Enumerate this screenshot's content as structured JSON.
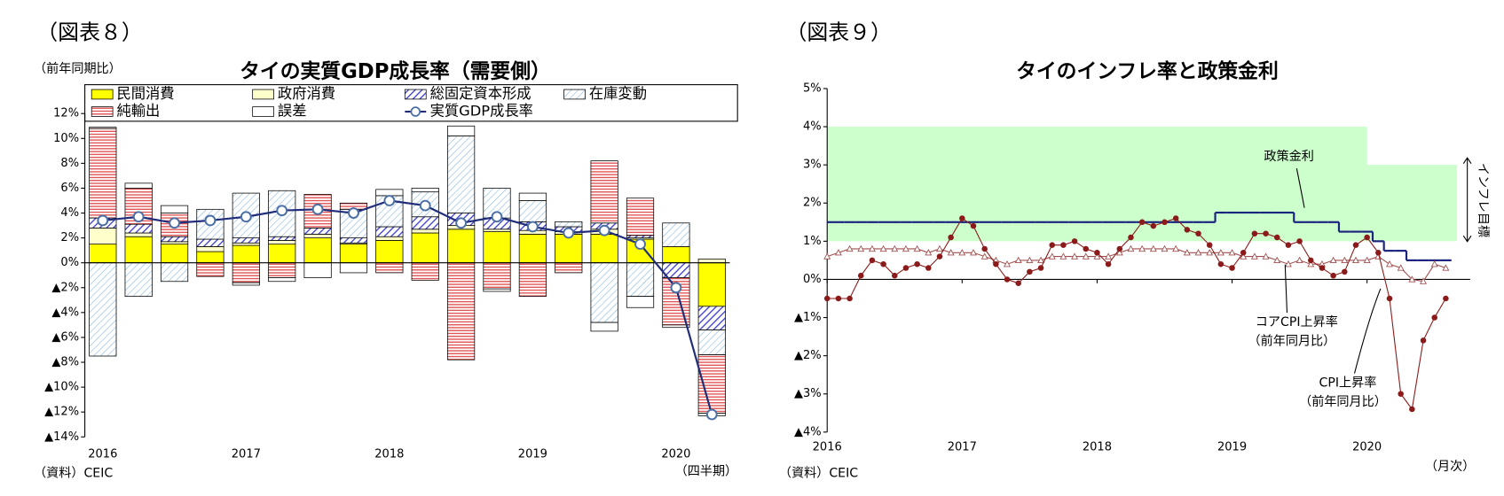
{
  "chart_data": [
    {
      "type": "bar",
      "figure_label": "（図表８）",
      "title": "タイの実質GDP成長率（需要側）",
      "unit_label": "（前年同期比）",
      "source": "（資料）CEIC",
      "x_unit": "（四半期）",
      "legend": "top",
      "grid": false,
      "stacked": true,
      "categories": [
        "2016",
        null,
        null,
        null,
        "2017",
        null,
        null,
        null,
        "2018",
        null,
        null,
        null,
        "2019",
        null,
        null,
        null,
        "2020",
        null
      ],
      "series": [
        {
          "name": "民間消費",
          "color": "#ffff00",
          "hatch": "solid",
          "values": [
            1.5,
            2.1,
            1.5,
            0.9,
            1.4,
            1.5,
            2.0,
            1.5,
            1.8,
            2.4,
            2.7,
            2.5,
            2.3,
            2.3,
            2.3,
            1.9,
            1.3,
            -3.5
          ]
        },
        {
          "name": "政府消費",
          "color": "#ffffcc",
          "hatch": "solid",
          "values": [
            1.3,
            0.3,
            0.2,
            0.4,
            0.2,
            0.3,
            0.3,
            0.1,
            0.3,
            0.3,
            0.3,
            0.2,
            0.3,
            0.2,
            0.4,
            0.1,
            0.0,
            0.3
          ]
        },
        {
          "name": "総固定資本形成",
          "color": "#3b3bcf",
          "hatch": "diagonal-bold",
          "values": [
            0.8,
            0.7,
            0.4,
            0.6,
            0.4,
            0.3,
            0.5,
            0.4,
            0.8,
            1.0,
            1.0,
            0.9,
            0.7,
            0.4,
            0.5,
            0.2,
            -1.2,
            -1.9
          ]
        },
        {
          "name": "在庫変動",
          "color": "#7fb2dd",
          "hatch": "diagonal",
          "values": [
            -7.5,
            -2.7,
            -1.5,
            2.4,
            3.6,
            3.7,
            0.0,
            2.3,
            2.5,
            2.0,
            6.2,
            2.4,
            1.7,
            0.4,
            -4.8,
            -2.7,
            1.9,
            -2.0
          ]
        },
        {
          "name": "純輸出",
          "color": "#e05555",
          "hatch": "horizontal",
          "values": [
            7.2,
            2.9,
            1.9,
            -1.1,
            -1.6,
            -1.2,
            2.7,
            0.5,
            -0.8,
            -1.4,
            -7.8,
            -2.1,
            -2.7,
            -0.8,
            5.0,
            3.0,
            -3.8,
            -4.7
          ]
        },
        {
          "name": "誤差",
          "color": "#ffffff",
          "hatch": "solid",
          "values": [
            0.1,
            0.4,
            0.6,
            0.0,
            -0.2,
            -0.3,
            -1.2,
            -0.8,
            0.5,
            0.3,
            0.8,
            -0.2,
            0.6,
            0.0,
            -0.7,
            -0.9,
            -0.2,
            -0.2
          ]
        },
        {
          "name": "実質GDP成長率",
          "type": "line",
          "color": "#1f2d7a",
          "marker_color": "#4a6fa5",
          "values": [
            3.4,
            3.7,
            3.2,
            3.4,
            3.7,
            4.2,
            4.3,
            4.0,
            5.0,
            4.6,
            3.2,
            3.7,
            2.9,
            2.4,
            2.6,
            1.5,
            -2.0,
            -12.2
          ]
        }
      ],
      "ylim": [
        -14,
        12
      ],
      "yticks": [
        {
          "value": 12,
          "label": "12%"
        },
        {
          "value": 10,
          "label": "10%"
        },
        {
          "value": 8,
          "label": "8%"
        },
        {
          "value": 6,
          "label": "6%"
        },
        {
          "value": 4,
          "label": "4%"
        },
        {
          "value": 2,
          "label": "2%"
        },
        {
          "value": 0,
          "label": "0%"
        },
        {
          "value": -2,
          "label": "▲2%"
        },
        {
          "value": -4,
          "label": "▲4%"
        },
        {
          "value": -6,
          "label": "▲6%"
        },
        {
          "value": -8,
          "label": "▲8%"
        },
        {
          "value": -10,
          "label": "▲10%"
        },
        {
          "value": -12,
          "label": "▲12%"
        },
        {
          "value": -14,
          "label": "▲14%"
        }
      ]
    },
    {
      "type": "line",
      "figure_label": "（図表９）",
      "title": "タイのインフレ率と政策金利",
      "source": "（資料）CEIC",
      "x_unit": "（月次）",
      "grid": false,
      "categories": [
        "2016",
        null,
        null,
        null,
        null,
        null,
        null,
        null,
        null,
        null,
        null,
        null,
        "2017",
        null,
        null,
        null,
        null,
        null,
        null,
        null,
        null,
        null,
        null,
        null,
        "2018",
        null,
        null,
        null,
        null,
        null,
        null,
        null,
        null,
        null,
        null,
        null,
        "2019",
        null,
        null,
        null,
        null,
        null,
        null,
        null,
        null,
        null,
        null,
        null,
        "2020",
        null,
        null,
        null,
        null,
        null,
        null,
        null
      ],
      "target_band": {
        "label": "インフレ目標",
        "color": "#ccffcc",
        "segments": [
          {
            "start": 0,
            "end": 48,
            "low": 1,
            "high": 4
          },
          {
            "start": 48,
            "end": 55,
            "low": 1,
            "high": 3
          }
        ]
      },
      "series": [
        {
          "name": "政策金利",
          "color": "#1a237e",
          "step": true,
          "values": [
            1.5,
            1.5,
            1.5,
            1.5,
            1.5,
            1.5,
            1.5,
            1.5,
            1.5,
            1.5,
            1.5,
            1.5,
            1.5,
            1.5,
            1.5,
            1.5,
            1.5,
            1.5,
            1.5,
            1.5,
            1.5,
            1.5,
            1.5,
            1.5,
            1.5,
            1.5,
            1.5,
            1.5,
            1.5,
            1.5,
            1.5,
            1.5,
            1.5,
            1.5,
            1.5,
            1.75,
            1.75,
            1.75,
            1.75,
            1.75,
            1.75,
            1.75,
            1.5,
            1.5,
            1.5,
            1.5,
            1.25,
            1.25,
            1.25,
            1.0,
            0.75,
            0.75,
            0.5,
            0.5,
            0.5,
            0.5
          ]
        },
        {
          "name": "コアCPI上昇率",
          "name_note": "（前年同月比）",
          "color": "#a05050",
          "marker": "triangle",
          "values": [
            0.6,
            0.7,
            0.8,
            0.8,
            0.8,
            0.8,
            0.8,
            0.8,
            0.8,
            0.7,
            0.8,
            0.7,
            0.7,
            0.7,
            0.6,
            0.5,
            0.4,
            0.5,
            0.5,
            0.5,
            0.6,
            0.6,
            0.6,
            0.6,
            0.6,
            0.6,
            0.7,
            0.8,
            0.8,
            0.8,
            0.8,
            0.8,
            0.7,
            0.7,
            0.7,
            0.7,
            0.7,
            0.6,
            0.6,
            0.6,
            0.5,
            0.4,
            0.5,
            0.4,
            0.4,
            0.5,
            0.5,
            0.5,
            0.5,
            0.6,
            0.4,
            0.3,
            0.0,
            -0.05,
            0.4,
            0.3
          ]
        },
        {
          "name": "CPI上昇率",
          "name_note": "（前年同月比）",
          "color": "#8b1a1a",
          "marker": "circle",
          "values": [
            -0.5,
            -0.5,
            -0.5,
            0.1,
            0.5,
            0.4,
            0.1,
            0.3,
            0.4,
            0.3,
            0.6,
            1.1,
            1.6,
            1.4,
            0.8,
            0.4,
            0.0,
            -0.1,
            0.2,
            0.3,
            0.9,
            0.9,
            1.0,
            0.8,
            0.7,
            0.4,
            0.8,
            1.1,
            1.5,
            1.4,
            1.5,
            1.6,
            1.3,
            1.2,
            0.9,
            0.4,
            0.3,
            0.7,
            1.2,
            1.2,
            1.1,
            0.9,
            1.0,
            0.5,
            0.3,
            0.1,
            0.2,
            0.9,
            1.1,
            0.7,
            -0.5,
            -3.0,
            -3.4,
            -1.6,
            -1.0,
            -0.5
          ]
        }
      ],
      "ylim": [
        -4,
        5
      ],
      "yticks": [
        {
          "value": 5,
          "label": "5%"
        },
        {
          "value": 4,
          "label": "4%"
        },
        {
          "value": 3,
          "label": "3%"
        },
        {
          "value": 2,
          "label": "2%"
        },
        {
          "value": 1,
          "label": "1%"
        },
        {
          "value": 0,
          "label": "0%"
        },
        {
          "value": -1,
          "label": "▲1%"
        },
        {
          "value": -2,
          "label": "▲2%"
        },
        {
          "value": -3,
          "label": "▲3%"
        },
        {
          "value": -4,
          "label": "▲4%"
        }
      ]
    }
  ]
}
